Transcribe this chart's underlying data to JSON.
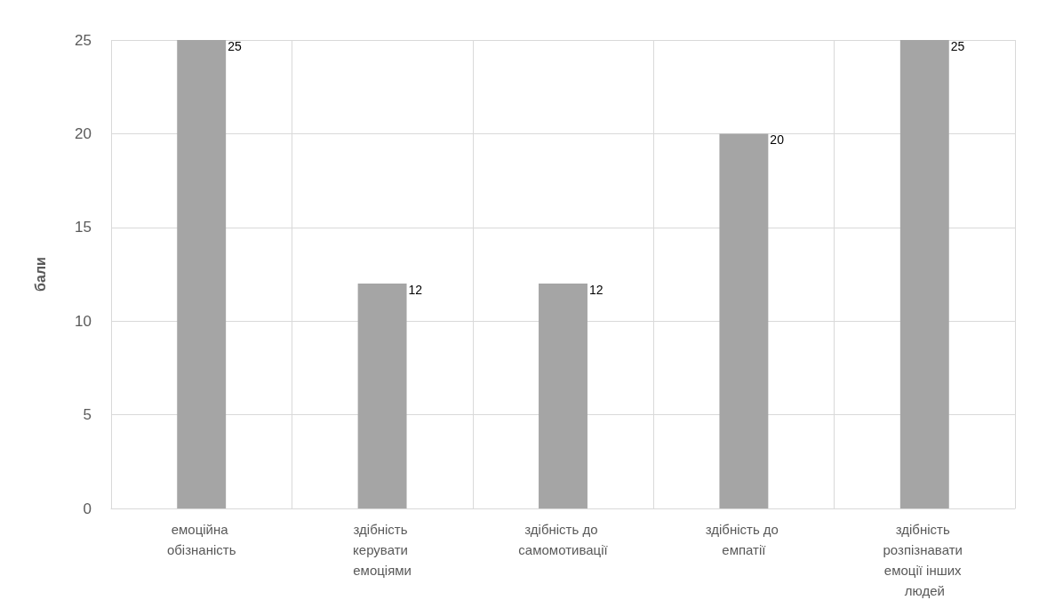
{
  "chart_data": {
    "type": "bar",
    "ylabel": "бали",
    "categories": [
      "емоційна обізнаність",
      "здібність керувати емоціями",
      "здібність до самомотивації",
      "здібність до емпатії",
      "здібність розпізнавати емоції інших людей"
    ],
    "values": [
      25,
      12,
      12,
      20,
      25
    ],
    "color": "#a5a5a5",
    "data_labels": true,
    "ylim": [
      0,
      25
    ],
    "yticks": [
      0,
      5,
      10,
      15,
      20,
      25
    ],
    "grid": true
  }
}
